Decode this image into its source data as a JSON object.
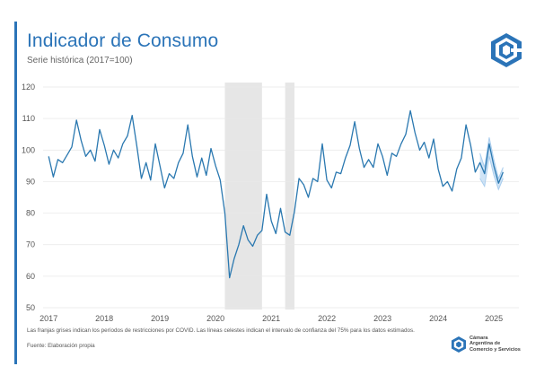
{
  "header": {
    "title": "Indicador de Consumo",
    "subtitle": "Serie histórica (2017=100)"
  },
  "footer": {
    "note": "Las franjas grises indican los períodos de restricciones por COVID. Las líneas celestes indican el intervalo de confianza del 75% para los datos estimados.",
    "source": "Fuente: Elaboración propia",
    "brand_lines": [
      "Cámara",
      "Argentina de",
      "Comercio y Servicios"
    ]
  },
  "colors": {
    "accent": "#2b74b8",
    "line": "#2a78b0",
    "band": "#a9cdee",
    "shade": "#e6e6e6",
    "grid": "#e8e8e8"
  },
  "icons": {
    "logo": "cac-logo-icon",
    "brand": "cac-brand-icon"
  },
  "chart_data": {
    "type": "line",
    "ylim": [
      50,
      120
    ],
    "yticks": [
      50,
      60,
      70,
      80,
      90,
      100,
      110,
      120
    ],
    "xlim": [
      2016.9,
      2025.45
    ],
    "xticks": [
      2017,
      2018,
      2019,
      2020,
      2021,
      2022,
      2023,
      2024,
      2025
    ],
    "xtick_labels": [
      "2017",
      "2018",
      "2019",
      "2020",
      "2021",
      "2022",
      "2023",
      "2024",
      "2025"
    ],
    "grid": true,
    "shaded_periods": [
      {
        "start": "2020-03",
        "end": "2020-11"
      },
      {
        "start": "2021-04",
        "end": "2021-06"
      }
    ],
    "series": [
      {
        "start": "2017-01",
        "frequency": "monthly",
        "values": [
          98,
          91.5,
          97,
          96,
          98.5,
          101,
          109.5,
          103,
          98,
          100,
          96.5,
          106.5,
          101.5,
          95.5,
          100,
          97.5,
          102,
          104.5,
          111,
          101.5,
          91,
          96,
          90.5,
          102,
          95,
          88,
          92.5,
          91,
          96,
          99,
          108,
          98,
          91.5,
          97.5,
          92,
          100.5,
          95,
          90.5,
          80,
          59.5,
          65.5,
          70,
          76,
          71.5,
          69.5,
          73,
          74.5,
          86,
          77.5,
          73.5,
          81.5,
          74,
          73,
          80.5,
          91,
          89,
          85,
          91,
          90,
          102,
          90.5,
          88,
          93,
          92.5,
          97.5,
          101.5,
          109,
          100.5,
          94.5,
          97,
          94.5,
          102,
          98,
          92,
          99,
          98,
          102,
          105,
          112.5,
          105.5,
          100,
          102.5,
          97.5,
          103.5,
          94,
          88.5,
          90,
          87,
          94,
          97.5,
          108,
          101.5,
          93,
          96,
          92.5,
          102,
          95,
          89.5,
          93
        ]
      }
    ],
    "confidence_band": {
      "start": "2024-10",
      "upper": [
        99,
        94.5,
        104,
        97,
        91,
        94.5
      ],
      "lower": [
        91,
        88.5,
        98,
        92,
        87.5,
        91
      ],
      "central": [
        95,
        91.5,
        101.5,
        94.5,
        89.5,
        93
      ]
    }
  }
}
